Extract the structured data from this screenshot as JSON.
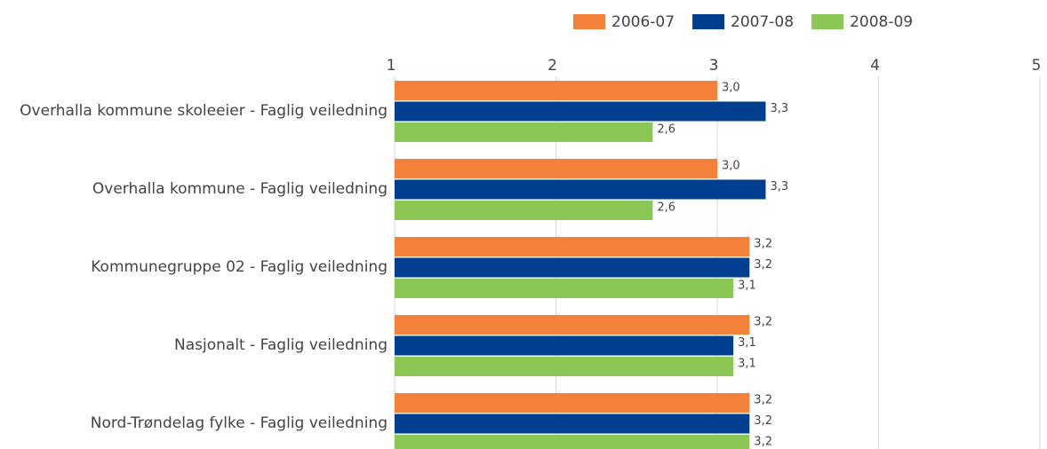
{
  "chart_data": {
    "type": "bar",
    "orientation": "horizontal",
    "categories": [
      "Overhalla kommune skoleeier - Faglig veiledning",
      "Overhalla kommune - Faglig veiledning",
      "Kommunegruppe 02 - Faglig veiledning",
      "Nasjonalt - Faglig veiledning",
      "Nord-Trøndelag fylke - Faglig veiledning"
    ],
    "series": [
      {
        "name": "2006-07",
        "color": "#f4813a",
        "values": [
          3.0,
          3.0,
          3.2,
          3.2,
          3.2
        ],
        "value_labels": [
          "3,0",
          "3,0",
          "3,2",
          "3,2",
          "3,2"
        ]
      },
      {
        "name": "2007-08",
        "color": "#003f8f",
        "values": [
          3.3,
          3.3,
          3.2,
          3.1,
          3.2
        ],
        "value_labels": [
          "3,3",
          "3,3",
          "3,2",
          "3,1",
          "3,2"
        ]
      },
      {
        "name": "2008-09",
        "color": "#8bc755",
        "values": [
          2.6,
          2.6,
          3.1,
          3.1,
          3.2
        ],
        "value_labels": [
          "2,6",
          "2,6",
          "3,1",
          "3,1",
          "3,2"
        ]
      }
    ],
    "xlim": [
      1,
      5
    ],
    "xticks": [
      1,
      2,
      3,
      4,
      5
    ],
    "grid": true,
    "legend": "top-right"
  }
}
